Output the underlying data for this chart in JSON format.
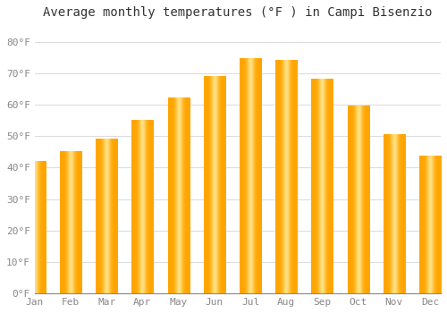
{
  "title": "Average monthly temperatures (°F ) in Campi Bisenzio",
  "months": [
    "Jan",
    "Feb",
    "Mar",
    "Apr",
    "May",
    "Jun",
    "Jul",
    "Aug",
    "Sep",
    "Oct",
    "Nov",
    "Dec"
  ],
  "values": [
    42,
    45,
    49,
    55,
    62,
    69,
    74.5,
    74,
    68,
    59.5,
    50.5,
    43.5
  ],
  "bar_color": "#FFA500",
  "bar_highlight": "#FFD966",
  "background_color": "#FFFFFF",
  "grid_color": "#DDDDDD",
  "title_fontsize": 10,
  "tick_fontsize": 8,
  "ylim": [
    0,
    85
  ],
  "yticks": [
    0,
    10,
    20,
    30,
    40,
    50,
    60,
    70,
    80
  ],
  "ytick_labels": [
    "0°F",
    "10°F",
    "20°F",
    "30°F",
    "40°F",
    "50°F",
    "60°F",
    "70°F",
    "80°F"
  ]
}
